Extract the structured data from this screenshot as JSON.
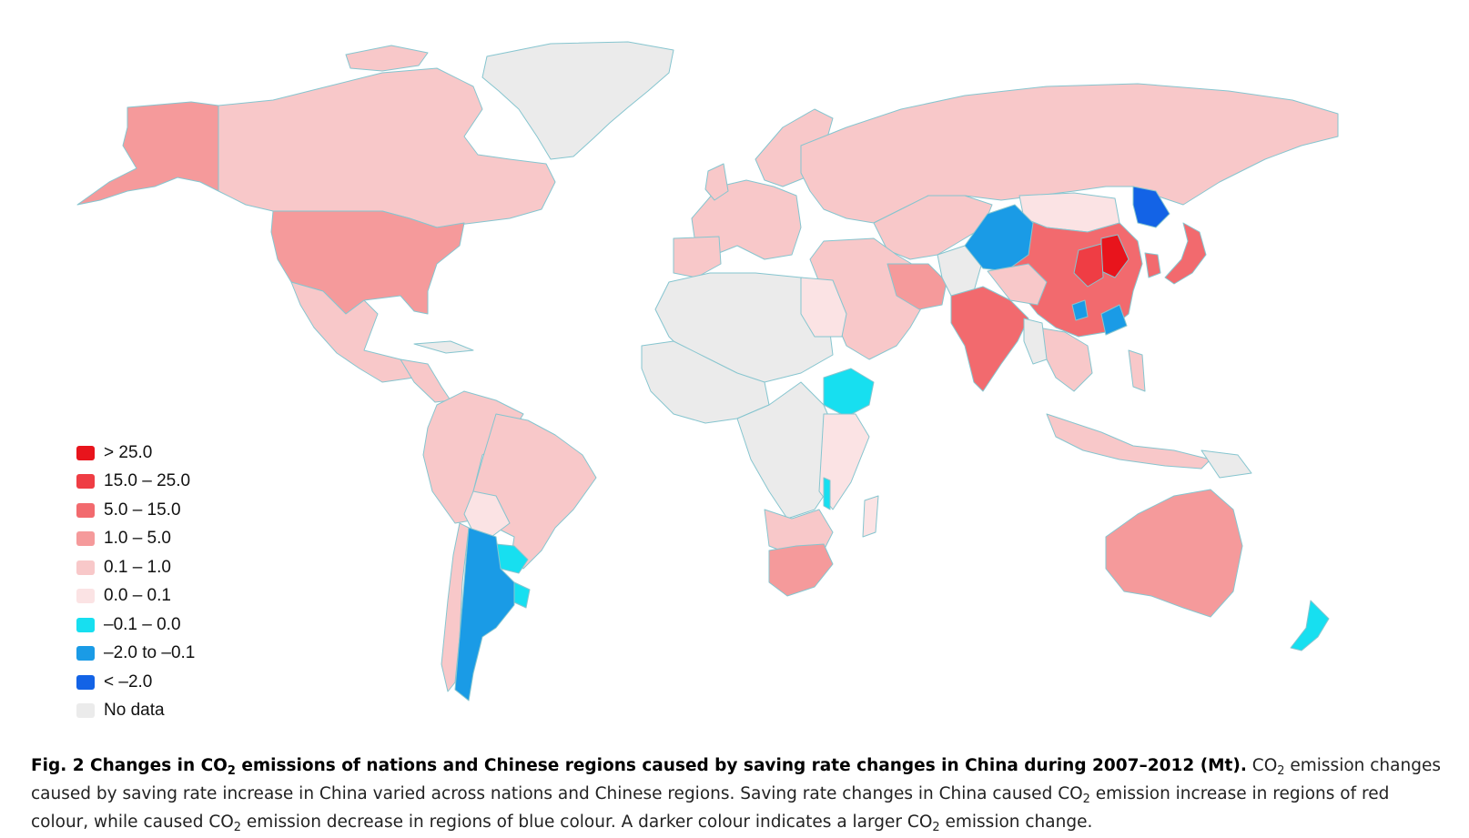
{
  "colors": {
    "ocean": "#ffffff",
    "border": "#86c5cf",
    "gt25": "#e8141c",
    "r15_25": "#ef3d44",
    "r5_15": "#f26a6e",
    "r1_5": "#f59a9b",
    "r01_1": "#f8c8c9",
    "r0_01": "#fbe3e4",
    "n01_0": "#17dff0",
    "n2_01": "#1a9be6",
    "lt_n2": "#1363e6",
    "nodata": "#ebebeb"
  },
  "legend": [
    {
      "label": "> 25.0",
      "color_key": "gt25"
    },
    {
      "label": "15.0 – 25.0",
      "color_key": "r15_25"
    },
    {
      "label": "5.0 – 15.0",
      "color_key": "r5_15"
    },
    {
      "label": "1.0 – 5.0",
      "color_key": "r1_5"
    },
    {
      "label": "0.1 – 1.0",
      "color_key": "r01_1"
    },
    {
      "label": "0.0 – 0.1",
      "color_key": "r0_01"
    },
    {
      "label": "–0.1 – 0.0",
      "color_key": "n01_0"
    },
    {
      "label": "–2.0 to –0.1",
      "color_key": "n2_01"
    },
    {
      "label": "< –2.0",
      "color_key": "lt_n2"
    },
    {
      "label": "No data",
      "color_key": "nodata"
    }
  ],
  "caption": {
    "bold_a": "Fig. 2 Changes in CO",
    "bold_sub": "2",
    "bold_b": " emissions of nations and Chinese regions caused by saving rate changes in China during 2007–2012 (Mt).",
    "t1": " CO",
    "s1": "2",
    "t2": " emission changes caused by saving rate increase in China varied across nations and Chinese regions. Saving rate changes in China caused CO",
    "s2": "2",
    "t3": " emission increase in regions of red colour, while caused CO",
    "s3": "2",
    "t4": " emission decrease in regions of blue colour. A darker colour indicates a larger CO",
    "s4": "2",
    "t5": " emission change."
  }
}
